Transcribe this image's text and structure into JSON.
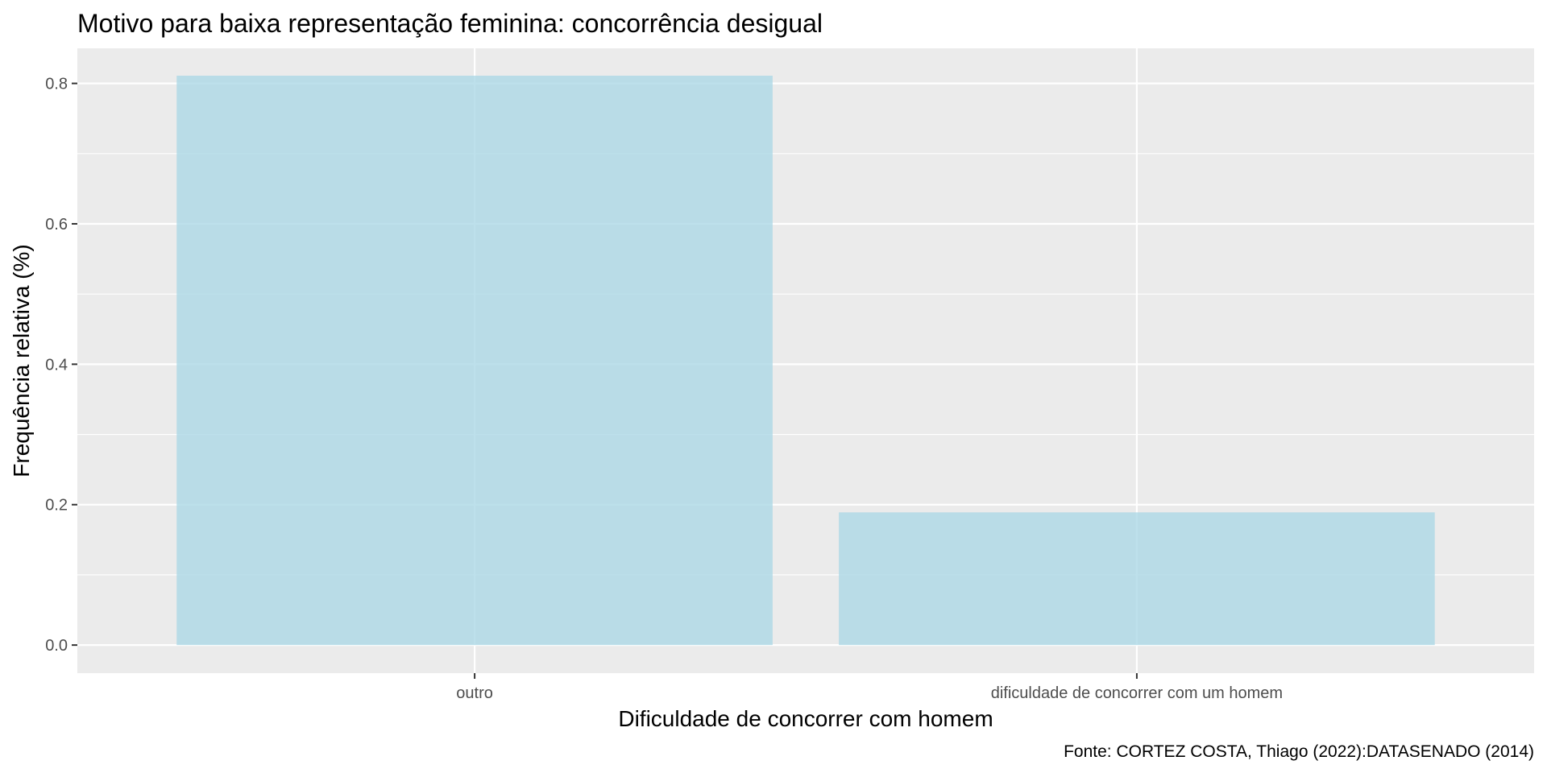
{
  "chart_data": {
    "type": "bar",
    "title": "Motivo para baixa representação feminina: concorrência desigual",
    "xlabel": "Dificuldade de concorrer com homem",
    "ylabel": "Frequência relativa (%)",
    "caption": "Fonte: CORTEZ COSTA, Thiago (2022):DATASENADO (2014)",
    "categories": [
      "outro",
      "dificuldade de concorrer com um homem"
    ],
    "values": [
      0.811,
      0.189
    ],
    "ylim": [
      -0.04,
      0.85
    ],
    "yticks": [
      0.0,
      0.2,
      0.4,
      0.6,
      0.8
    ],
    "ytick_labels": [
      "0.0",
      "0.2",
      "0.4",
      "0.6",
      "0.8"
    ],
    "grid": true,
    "legend": "none",
    "colors": {
      "bar": "#add8e6",
      "panel": "#ebebeb",
      "grid": "#ffffff"
    }
  }
}
